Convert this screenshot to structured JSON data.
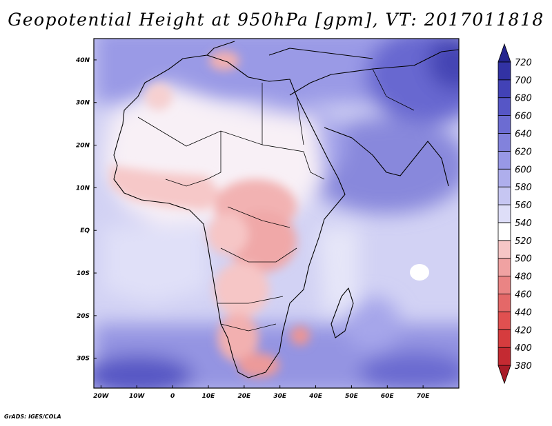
{
  "title": "Geopotential Height at 950hPa [gpm], VT: 2017011818",
  "credit": "GrADS: IGES/COLA",
  "map": {
    "variable": "Geopotential Height at 950hPa",
    "units": "gpm",
    "valid_time": "2017011818",
    "lon_range": [
      -22,
      80
    ],
    "lat_range": [
      -37,
      45
    ],
    "x_ticks": [
      {
        "lon": -20,
        "label": "20W"
      },
      {
        "lon": -10,
        "label": "10W"
      },
      {
        "lon": 0,
        "label": "0"
      },
      {
        "lon": 10,
        "label": "10E"
      },
      {
        "lon": 20,
        "label": "20E"
      },
      {
        "lon": 30,
        "label": "30E"
      },
      {
        "lon": 40,
        "label": "40E"
      },
      {
        "lon": 50,
        "label": "50E"
      },
      {
        "lon": 60,
        "label": "60E"
      },
      {
        "lon": 70,
        "label": "70E"
      }
    ],
    "y_ticks": [
      {
        "lat": 40,
        "label": "40N"
      },
      {
        "lat": 30,
        "label": "30N"
      },
      {
        "lat": 20,
        "label": "20N"
      },
      {
        "lat": 10,
        "label": "10N"
      },
      {
        "lat": 0,
        "label": "EQ"
      },
      {
        "lat": -10,
        "label": "10S"
      },
      {
        "lat": -20,
        "label": "20S"
      },
      {
        "lat": -30,
        "label": "30S"
      }
    ]
  },
  "colorbar": {
    "levels": [
      380,
      400,
      420,
      440,
      460,
      480,
      500,
      520,
      540,
      560,
      580,
      600,
      620,
      640,
      660,
      680,
      700,
      720
    ],
    "colors": [
      "#a81c28",
      "#c42a32",
      "#d63c3e",
      "#e05050",
      "#e46868",
      "#ea8484",
      "#f0a2a2",
      "#f6c6c6",
      "#ffffff",
      "#dedef8",
      "#c6c6f2",
      "#aeaeec",
      "#9898e6",
      "#8282dc",
      "#6c6cd2",
      "#5656c6",
      "#4242b6",
      "#3232a4",
      "#24248e"
    ]
  }
}
